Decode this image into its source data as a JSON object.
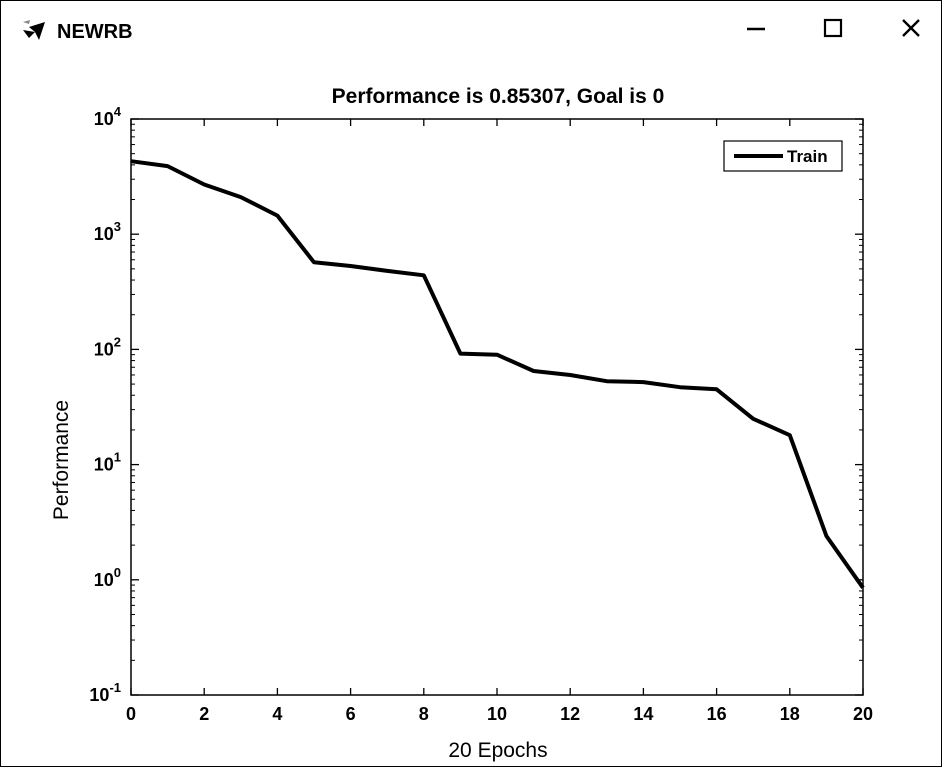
{
  "window": {
    "title": "NEWRB",
    "icon": "matlab-figure-icon",
    "controls": [
      "minimize-icon",
      "maximize-icon",
      "close-icon"
    ]
  },
  "chart_data": {
    "type": "line",
    "title": "Performance is 0.85307, Goal is 0",
    "xlabel": "20 Epochs",
    "ylabel": "Performance",
    "yscale": "log",
    "xlim": [
      0,
      20
    ],
    "ylim": [
      0.1,
      10000
    ],
    "xticks": [
      0,
      2,
      4,
      6,
      8,
      10,
      12,
      14,
      16,
      18,
      20
    ],
    "xtick_labels": [
      "0",
      "2",
      "4",
      "6",
      "8",
      "10",
      "12",
      "14",
      "16",
      "18",
      "20"
    ],
    "yticks": [
      0.1,
      1,
      10,
      100,
      1000,
      10000
    ],
    "ytick_labels": [
      {
        "base": "10",
        "exp": "-1"
      },
      {
        "base": "10",
        "exp": "0"
      },
      {
        "base": "10",
        "exp": "1"
      },
      {
        "base": "10",
        "exp": "2"
      },
      {
        "base": "10",
        "exp": "3"
      },
      {
        "base": "10",
        "exp": "4"
      }
    ],
    "grid": false,
    "legend": {
      "position": "top-right",
      "entries": [
        "Train"
      ]
    },
    "series": [
      {
        "name": "Train",
        "color": "#000000",
        "x": [
          0,
          1,
          2,
          3,
          4,
          5,
          6,
          7,
          8,
          9,
          10,
          11,
          12,
          13,
          14,
          15,
          16,
          17,
          18,
          19,
          20
        ],
        "y": [
          4300,
          3900,
          2700,
          2100,
          1450,
          570,
          530,
          480,
          440,
          92,
          90,
          65,
          60,
          53,
          52,
          47,
          45,
          25,
          18,
          2.4,
          0.85307
        ]
      }
    ]
  }
}
